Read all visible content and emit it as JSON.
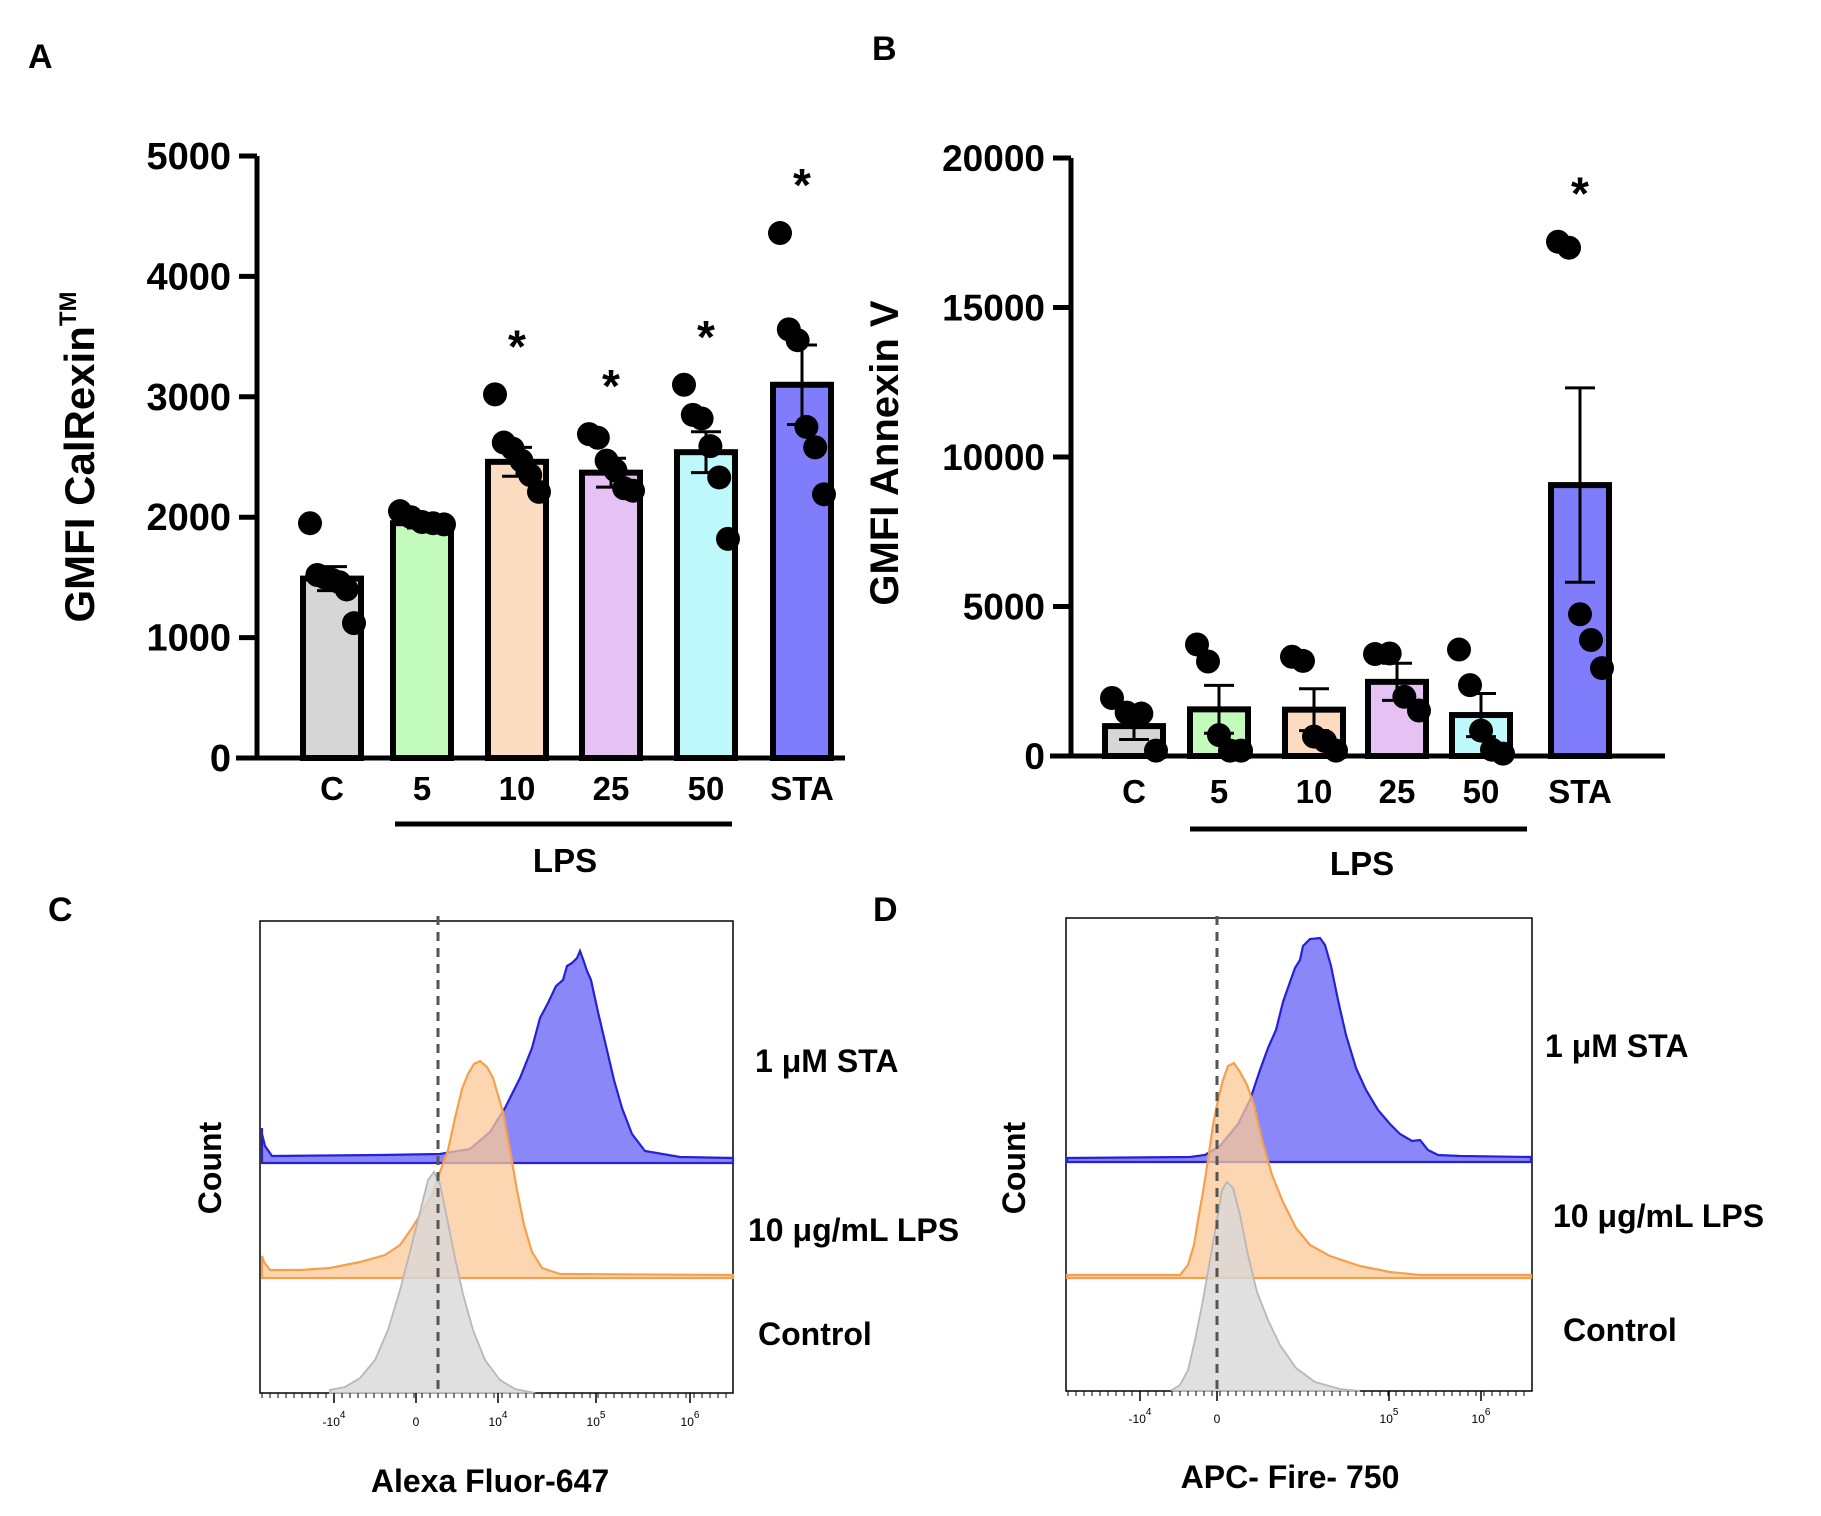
{
  "chart_data": [
    {
      "panel_label": "A",
      "type": "bar",
      "ylabel": "GMFI CalRexin",
      "ylabel_sup": "TM",
      "ylim": [
        0,
        5000
      ],
      "yticks": [
        0,
        1000,
        2000,
        3000,
        4000,
        5000
      ],
      "tick_labels": [
        "0",
        "1000",
        "2000",
        "3000",
        "4000",
        "5000"
      ],
      "categories": [
        "C",
        "5",
        "10",
        "25",
        "50",
        "STA"
      ],
      "group_label": "LPS",
      "colors": [
        "#d6d6d6",
        "#c3fbbd",
        "#fbdcc0",
        "#e6c1f4",
        "#bdf8fa",
        "#7f7dfb"
      ],
      "values": [
        1490,
        1950,
        2460,
        2370,
        2540,
        3100
      ],
      "sem": [
        100,
        40,
        120,
        120,
        170,
        330
      ],
      "points": [
        [
          1950,
          1520,
          1500,
          1480,
          1460,
          1400,
          1120
        ],
        [
          2050,
          2000,
          1960,
          1950,
          1940
        ],
        [
          3020,
          2620,
          2570,
          2470,
          2350,
          2210
        ],
        [
          2690,
          2660,
          2470,
          2390,
          2240,
          2220
        ],
        [
          3100,
          2850,
          2820,
          2590,
          2330,
          1820
        ],
        [
          4360,
          3560,
          3470,
          2750,
          2580,
          2190
        ]
      ],
      "significance": [
        "",
        "",
        "*",
        "*",
        "*",
        "*"
      ]
    },
    {
      "panel_label": "B",
      "type": "bar",
      "ylabel": "GMFI Annexin V",
      "ylim": [
        0,
        20000
      ],
      "yticks": [
        0,
        5000,
        10000,
        15000,
        20000
      ],
      "tick_labels": [
        "0",
        "5000",
        "10000",
        "15000",
        "20000"
      ],
      "categories": [
        "C",
        "5",
        "10",
        "25",
        "50",
        "STA"
      ],
      "group_label": "LPS",
      "colors": [
        "#d6d6d6",
        "#c3fbbd",
        "#fbdcc0",
        "#e6c1f4",
        "#bdf8fa",
        "#7f7dfb"
      ],
      "values": [
        1000,
        1560,
        1550,
        2480,
        1370,
        9060
      ],
      "sem": [
        450,
        800,
        700,
        620,
        720,
        3250
      ],
      "points": [
        [
          1940,
          1450,
          1420,
          180
        ],
        [
          3730,
          3160,
          700,
          180,
          180
        ],
        [
          3320,
          3180,
          650,
          500,
          180
        ],
        [
          3410,
          3430,
          1980,
          1520
        ],
        [
          3560,
          2370,
          850,
          210,
          80
        ],
        [
          17200,
          17000,
          4740,
          3880,
          2940
        ]
      ],
      "significance": [
        "",
        "",
        "",
        "",
        "",
        "*"
      ]
    },
    {
      "panel_label": "C",
      "type": "area",
      "xlabel": "Alexa Fluor-647",
      "ylabel": "Count",
      "tick_labels": [
        "-10",
        "0",
        "10",
        "10",
        "10"
      ],
      "tick_exponents": [
        "4",
        "",
        "4",
        "5",
        "6"
      ],
      "series": [
        {
          "name": "1 μM STA",
          "color": "#2620d6",
          "fill": "#7d7bf7"
        },
        {
          "name": "10 μg/mL LPS",
          "color": "#f5a04c",
          "fill": "#fbc895"
        },
        {
          "name": "Control",
          "color": "#b8b8b8",
          "fill": "#d8d8d8"
        }
      ]
    },
    {
      "panel_label": "D",
      "type": "area",
      "xlabel": "APC- Fire- 750",
      "ylabel": "Count",
      "tick_labels": [
        "-10",
        "0",
        "10",
        "10"
      ],
      "tick_exponents": [
        "4",
        "",
        "5",
        "6"
      ],
      "series": [
        {
          "name": "1 μM STA",
          "color": "#2620d6",
          "fill": "#7d7bf7"
        },
        {
          "name": "10 μg/mL LPS",
          "color": "#f5a04c",
          "fill": "#fbc895"
        },
        {
          "name": "Control",
          "color": "#b8b8b8",
          "fill": "#d8d8d8"
        }
      ]
    }
  ]
}
